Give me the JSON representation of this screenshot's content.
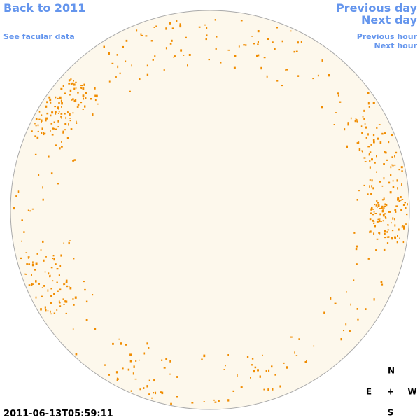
{
  "header": {
    "back_link": "Back to 2011",
    "facular_link": "See facular data",
    "previous_day": "Previous day",
    "next_day": "Next day",
    "previous_hour": "Previous hour",
    "next_hour": "Next hour"
  },
  "timestamp": "2011-06-13T05:59:11",
  "compass": {
    "north": "N",
    "east": "E",
    "center": "+",
    "west": "W",
    "south": "S"
  }
}
